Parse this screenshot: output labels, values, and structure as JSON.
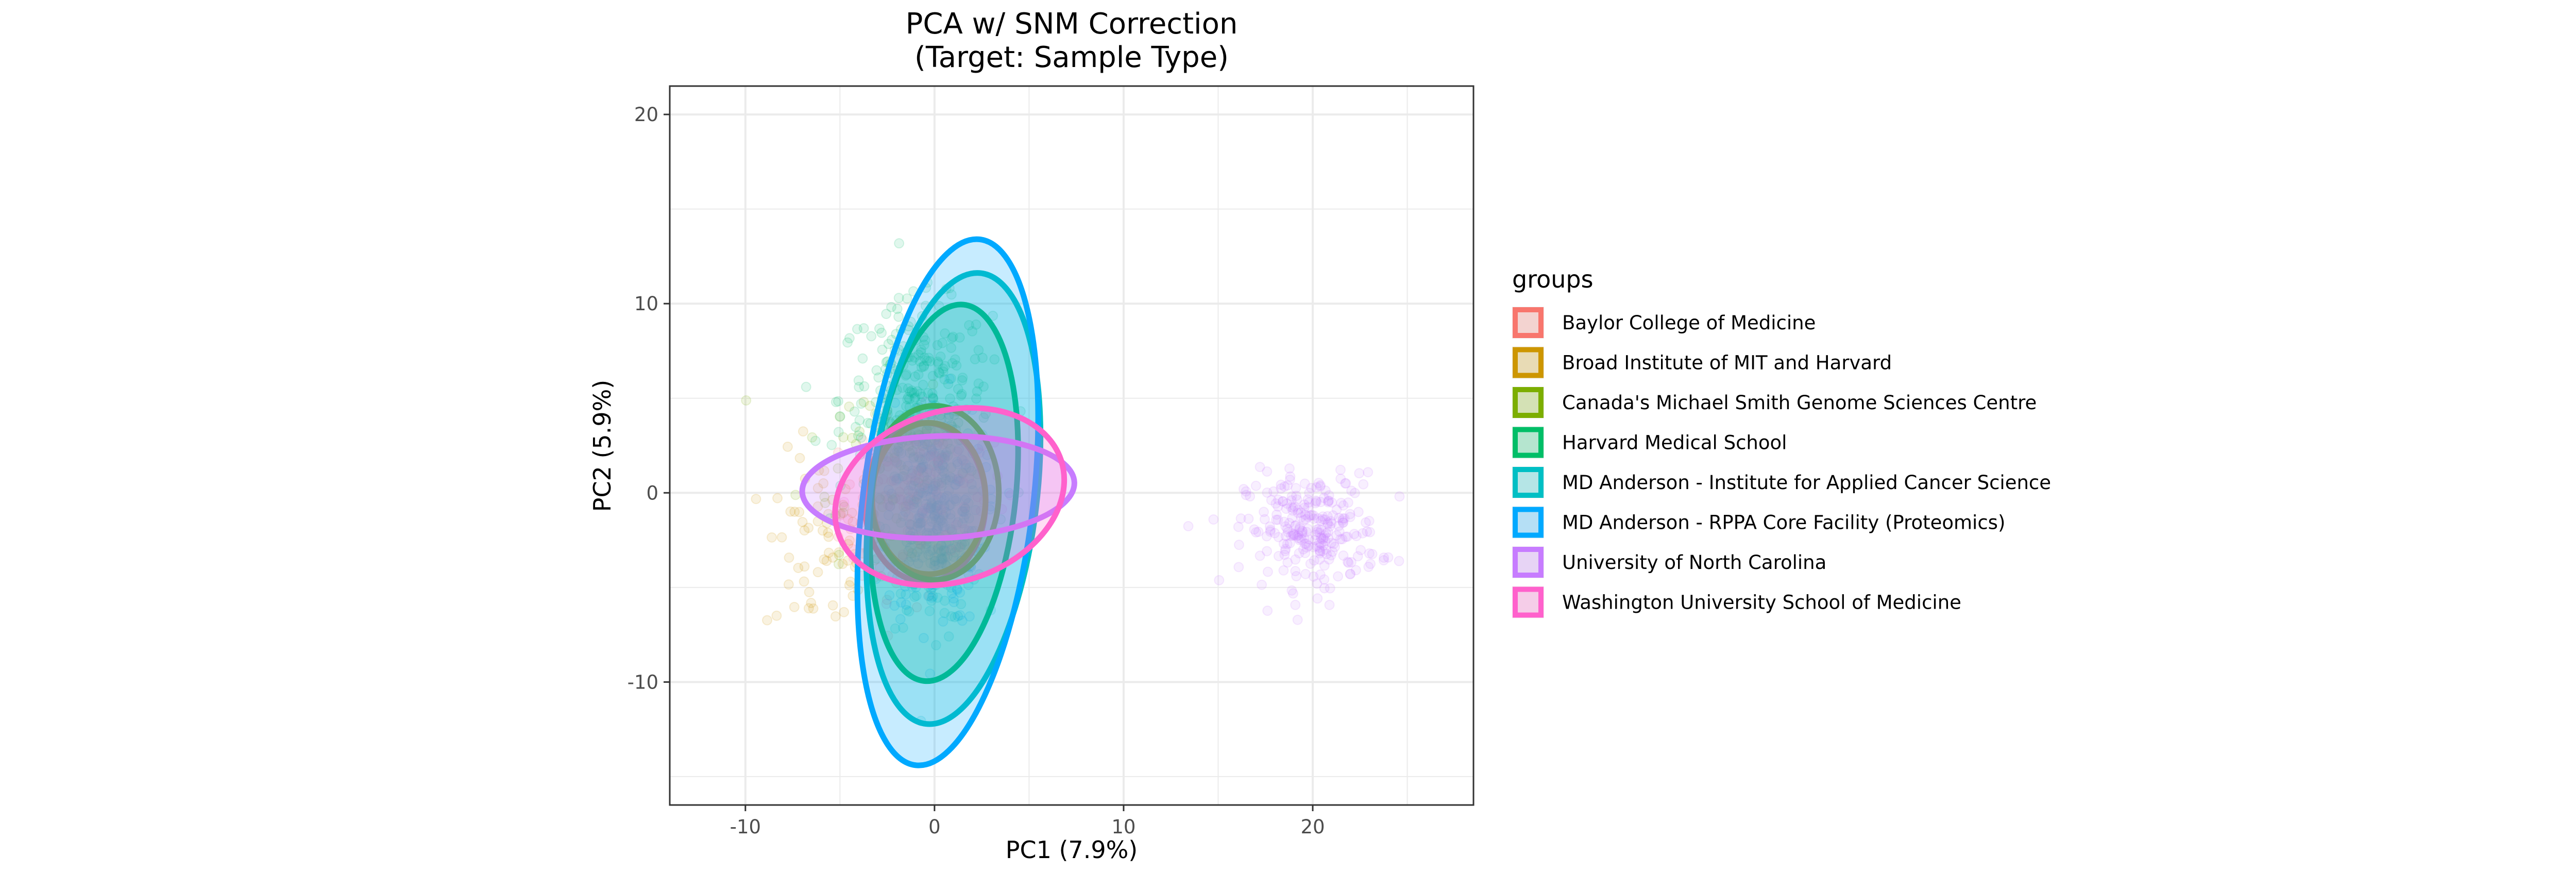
{
  "chart_data": {
    "type": "scatter",
    "title_line1": "PCA w/ SNM Correction",
    "title_line2": "(Target: Sample Type)",
    "xlabel": "PC1 (7.9%)",
    "ylabel": "PC2 (5.9%)",
    "xlim": [
      -14,
      28.5
    ],
    "ylim": [
      -16.5,
      21.5
    ],
    "x_ticks": [
      -10,
      0,
      10,
      20
    ],
    "y_ticks": [
      -10,
      0,
      10,
      20
    ],
    "grid": true,
    "legend_title": "groups",
    "legend_position": "right",
    "series": [
      {
        "name": "Baylor College of Medicine",
        "color": "#F8766D",
        "points_center": [
          -2,
          -1
        ],
        "points_spread": [
          3,
          5
        ],
        "points_count": 60,
        "ellipse": {
          "cx": -0.5,
          "cy": -0.5,
          "rx": 3.2,
          "ry": 4.2,
          "angle": 0
        }
      },
      {
        "name": "Broad Institute of MIT and Harvard",
        "color": "#CD9600",
        "points_center": [
          -6,
          -3
        ],
        "points_spread": [
          3,
          5
        ],
        "points_count": 70,
        "ellipse": {
          "cx": -0.3,
          "cy": -0.3,
          "rx": 3.0,
          "ry": 4.0,
          "angle": 0
        }
      },
      {
        "name": "Canada's Michael Smith Genome Sciences Centre",
        "color": "#7CAE00",
        "points_center": [
          -3,
          2
        ],
        "points_spread": [
          4,
          5
        ],
        "points_count": 60,
        "ellipse": {
          "cx": 0,
          "cy": 0,
          "rx": 3.4,
          "ry": 4.6,
          "angle": 0
        }
      },
      {
        "name": "Harvard Medical School",
        "color": "#00BE67",
        "points_center": [
          -1,
          5
        ],
        "points_spread": [
          4,
          5
        ],
        "points_count": 260,
        "ellipse": {
          "cx": 0.5,
          "cy": 0,
          "rx": 3.8,
          "ry": 10.0,
          "angle": 6
        }
      },
      {
        "name": "MD Anderson - Institute for Applied Cancer Science",
        "color": "#00BFC4",
        "points_center": [
          0,
          -2
        ],
        "points_spread": [
          2.5,
          5
        ],
        "points_count": 180,
        "ellipse": {
          "cx": 1.0,
          "cy": -0.3,
          "rx": 4.4,
          "ry": 12.0,
          "angle": 7
        }
      },
      {
        "name": "MD Anderson - RPPA Core Facility (Proteomics)",
        "color": "#00A9FF",
        "points_center": [
          0,
          -1
        ],
        "points_spread": [
          2.5,
          6
        ],
        "points_count": 200,
        "ellipse": {
          "cx": 0.7,
          "cy": -0.5,
          "rx": 4.5,
          "ry": 14.0,
          "angle": 7
        }
      },
      {
        "name": "University of North Carolina",
        "color": "#C77CFF",
        "points_center": [
          20,
          -2
        ],
        "points_spread": [
          3.5,
          3
        ],
        "points_count": 260,
        "ellipse": {
          "cx": 0.2,
          "cy": 0.3,
          "rx": 7.2,
          "ry": 2.7,
          "angle": -2
        }
      },
      {
        "name": "Washington University School of Medicine",
        "color": "#FF61CC",
        "points_center": [
          0,
          0
        ],
        "points_spread": [
          4,
          4
        ],
        "points_count": 70,
        "ellipse": {
          "cx": 0.8,
          "cy": -0.2,
          "rx": 6.2,
          "ry": 4.5,
          "angle": -18
        }
      }
    ]
  }
}
